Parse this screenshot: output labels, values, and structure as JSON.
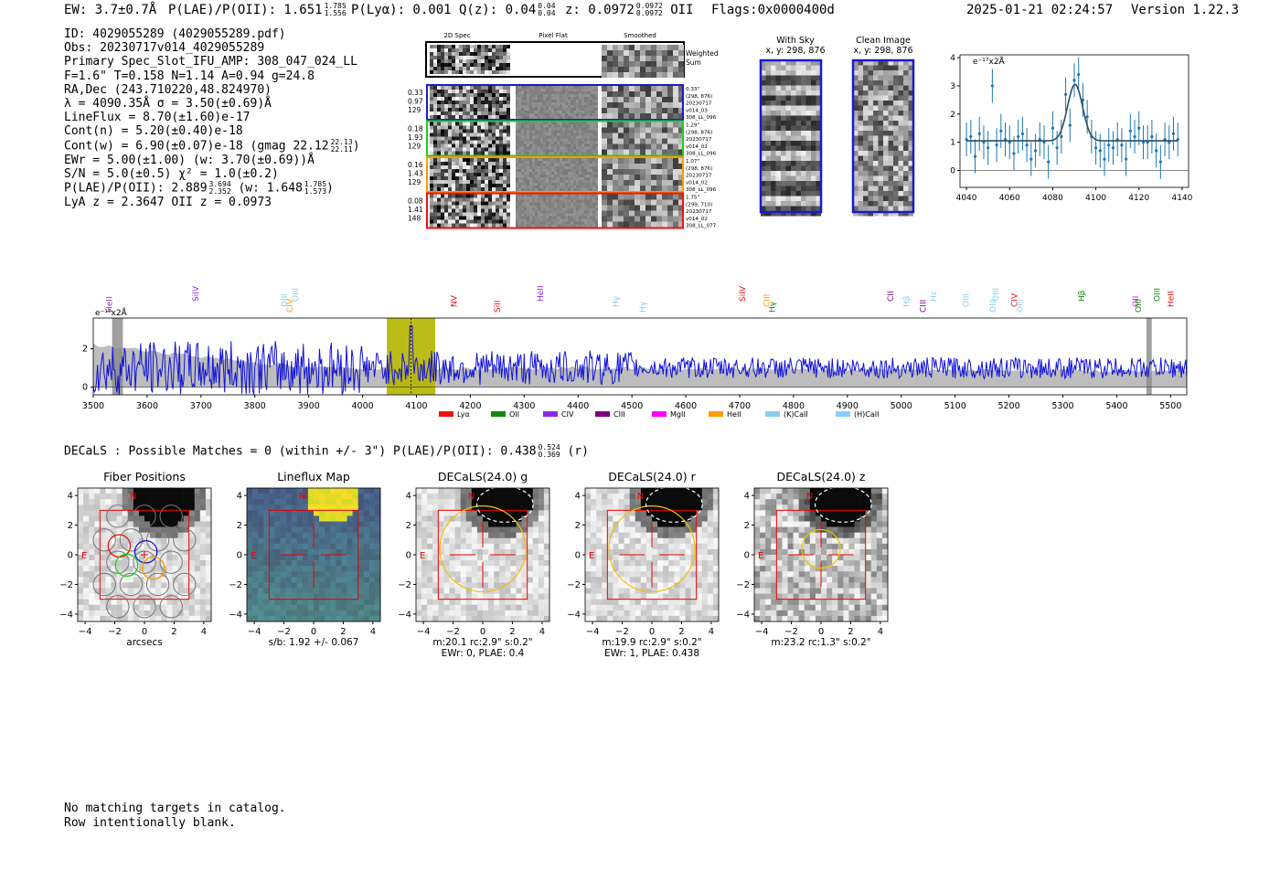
{
  "header": {
    "ew_label": "EW: 3.7±0.7Å",
    "plae_label": "P(LAE)/P(OII): 1.651",
    "plae_hi": "1.785",
    "plae_lo": "1.556",
    "plya_label": "P(Lyα): 0.001",
    "qz_label": "Q(z): 0.04",
    "qz_hi": "0.04",
    "qz_lo": "0.04",
    "z_label": "z: 0.0972",
    "z_hi": "0.0972",
    "z_lo": "0.0972",
    "z_line": "OII",
    "flags": "Flags:0x0000400d",
    "timestamp": "2025-01-21 02:24:57",
    "version": "Version 1.22.3"
  },
  "info": {
    "id": "ID: 4029055289 (4029055289.pdf)",
    "obs": "Obs: 20230717v014_4029055289",
    "primary": "Primary Spec_Slot_IFU_AMP: 308_047_024_LL",
    "fit_params": "F=1.6\"  T=0.158  N=1.14  A=0.94  g=24.8",
    "radec": "RA,Dec (243.710220,48.824970)",
    "lambda_sigma": "λ = 4090.35Å   σ = 3.50(±0.69)Å",
    "lineflux": "LineFlux = 8.70(±1.60)e-17",
    "cont_n": "Cont(n) = 5.20(±0.40)e-18",
    "cont_w": "Cont(w) = 6.90(±0.07)e-18 (gmag 22.12",
    "gmag_hi": "22.13",
    "gmag_lo": "22.11",
    "ewr": "EWr = 5.00(±1.00) (w: 3.70(±0.69))Å",
    "sn": "S/N = 5.0(±0.5)  χ² = 1.0(±0.2)",
    "plae": "P(LAE)/P(OII): 2.889",
    "plae_hi": "3.694",
    "plae_lo": "2.352",
    "plae_w": "(w: 1.648",
    "plae_w_hi": "1.785",
    "plae_w_lo": "1.573",
    "lya_oii": "LyA z = 2.3647   OII z = 0.0973"
  },
  "stamps": {
    "col_titles": [
      "2D Spec",
      "Pixel Flat",
      "Smoothed"
    ],
    "weighted_sum": "Weighted Sum",
    "rows": [
      {
        "left": [
          "0.33",
          "0.97",
          "129"
        ],
        "right": [
          "0.33\"",
          "(298, 876)",
          "20230717",
          "v014_03",
          "308_LL_096"
        ],
        "color": "#1a1acc"
      },
      {
        "left": [
          "0.18",
          "1.93",
          "129"
        ],
        "right": [
          "1.29\"",
          "(298, 876)",
          "20230717",
          "v014_01",
          "308_LL_096"
        ],
        "color": "#22cc22"
      },
      {
        "left": [
          "0.16",
          "1.43",
          "129"
        ],
        "right": [
          "1.07\"",
          "(298, 876)",
          "20230717",
          "v014_02",
          "308_LL_096"
        ],
        "color": "#ff9900"
      },
      {
        "left": [
          "0.08",
          "1.41",
          "148"
        ],
        "right": [
          "1.75\"",
          "(299, 710)",
          "20230717",
          "v014_02",
          "308_LL_077"
        ],
        "color": "#ee1111"
      }
    ]
  },
  "sky": {
    "with_sky_title": "With Sky",
    "with_sky_coords": "x, y: 298, 876",
    "clean_title": "Clean Image",
    "clean_coords": "x, y: 298, 876"
  },
  "fit_chart": {
    "ylabel": "e⁻¹⁷x2Å"
  },
  "main_chart": {
    "ylabel": "e⁻¹⁷x2Å",
    "legend": [
      {
        "name": "Lyα",
        "color": "#ee1111"
      },
      {
        "name": "OII",
        "color": "#118811"
      },
      {
        "name": "CIV",
        "color": "#8a2be2"
      },
      {
        "name": "CIII",
        "color": "#800080"
      },
      {
        "name": "MgII",
        "color": "#ff00ff"
      },
      {
        "name": "HeII",
        "color": "#ff9900"
      },
      {
        "name": "(K)CaII",
        "color": "#87ceeb"
      },
      {
        "name": "(H)CaII",
        "color": "#87cefa"
      }
    ],
    "lines": [
      {
        "name": "HeII",
        "x": 3530,
        "color": "#8a2be2"
      },
      {
        "name": "SiIV",
        "x": 3690,
        "color": "#8a2be2"
      },
      {
        "name": "OIII",
        "x": 3855,
        "color": "#87ceeb"
      },
      {
        "name": "CIV",
        "x": 3865,
        "color": "#ff9900"
      },
      {
        "name": "OIII",
        "x": 3875,
        "color": "#87ceeb"
      },
      {
        "name": "NV",
        "x": 4170,
        "color": "#ee1111"
      },
      {
        "name": "SiII",
        "x": 4250,
        "color": "#ee1111"
      },
      {
        "name": "HeII",
        "x": 4330,
        "color": "#8a2be2"
      },
      {
        "name": "Hγ",
        "x": 4470,
        "color": "#87ceeb"
      },
      {
        "name": "Hγ",
        "x": 4520,
        "color": "#87ceeb"
      },
      {
        "name": "SiIV",
        "x": 4705,
        "color": "#ee1111"
      },
      {
        "name": "CIII",
        "x": 4750,
        "color": "#ff9900"
      },
      {
        "name": "Hγ",
        "x": 4760,
        "color": "#118811"
      },
      {
        "name": "CII",
        "x": 4980,
        "color": "#800080"
      },
      {
        "name": "Hβ",
        "x": 5010,
        "color": "#87ceeb"
      },
      {
        "name": "CIII",
        "x": 5040,
        "color": "#800080"
      },
      {
        "name": "Hε",
        "x": 5060,
        "color": "#87ceeb"
      },
      {
        "name": "OIII",
        "x": 5120,
        "color": "#87ceeb"
      },
      {
        "name": "OIII",
        "x": 5170,
        "color": "#87ceeb"
      },
      {
        "name": "OIII",
        "x": 5175,
        "color": "#87ceeb"
      },
      {
        "name": "CIV",
        "x": 5210,
        "color": "#ee1111"
      },
      {
        "name": "OIII",
        "x": 5220,
        "color": "#87ceeb"
      },
      {
        "name": "Hβ",
        "x": 5335,
        "color": "#118811"
      },
      {
        "name": "OII",
        "x": 5435,
        "color": "#ff00ff"
      },
      {
        "name": "OIII",
        "x": 5440,
        "color": "#118811"
      },
      {
        "name": "OIII",
        "x": 5475,
        "color": "#118811"
      },
      {
        "name": "HeII",
        "x": 5500,
        "color": "#ee1111"
      }
    ]
  },
  "decals": {
    "summary": "DECaLS : Possible Matches = 0 (within +/- 3\")  P(LAE)/P(OII): 0.438",
    "summary_hi": "0.524",
    "summary_lo": "0.369",
    "summary_band": "(r)",
    "panels": [
      {
        "title": "Fiber Positions",
        "caption1": "arcsecs",
        "caption2": ""
      },
      {
        "title": "Lineflux Map",
        "caption1": "s/b: 1.92 +/- 0.067",
        "caption2": ""
      },
      {
        "title": "DECaLS(24.0) g",
        "caption1": "m:20.1 rc:2.9\"  s:0.2\"",
        "caption2": "EWr: 0, PLAE: 0.4"
      },
      {
        "title": "DECaLS(24.0) r",
        "caption1": "m:19.9 rc:2.9\"  s:0.2\"",
        "caption2": "EWr: 1, PLAE: 0.438"
      },
      {
        "title": "DECaLS(24.0) z",
        "caption1": "m:23.2 rc:1.3\"  s:0.2\"",
        "caption2": ""
      }
    ],
    "compass_n": "N",
    "compass_e": "E"
  },
  "footer": {
    "line1": "No matching targets in catalog.",
    "line2": "Row intentionally blank."
  },
  "chart_data": [
    {
      "type": "line",
      "title": "",
      "xlabel": "",
      "ylabel": "e⁻¹⁷x2Å",
      "xlim": [
        3500,
        5530
      ],
      "ylim": [
        -0.4,
        3.6
      ],
      "xticks": [
        3500,
        3600,
        3700,
        3800,
        3900,
        4000,
        4100,
        4200,
        4300,
        4400,
        4500,
        4600,
        4700,
        4800,
        4900,
        5000,
        5100,
        5200,
        5300,
        5400,
        5500
      ],
      "yticks": [
        0,
        2
      ],
      "highlight_band": [
        4045,
        4135
      ],
      "line_marker": 4090,
      "series": [
        {
          "kind": "spectrum",
          "x_start": 3500,
          "x_end": 5530,
          "x_step": 2,
          "approx_mean": 1.0,
          "approx_noise": 0.7
        },
        {
          "kind": "error_envelope",
          "approx_level": 1.0
        }
      ]
    },
    {
      "type": "scatter",
      "title": "",
      "xlabel": "",
      "ylabel": "e⁻¹⁷x2Å",
      "xlim": [
        4037,
        4143
      ],
      "ylim": [
        -0.6,
        4.1
      ],
      "xticks": [
        4040,
        4060,
        4080,
        4100,
        4120,
        4140
      ],
      "yticks": [
        0,
        1,
        2,
        3,
        4
      ],
      "x": [
        4040,
        4042,
        4044,
        4046,
        4048,
        4050,
        4052,
        4054,
        4056,
        4058,
        4060,
        4062,
        4064,
        4066,
        4068,
        4070,
        4072,
        4074,
        4076,
        4078,
        4080,
        4082,
        4084,
        4086,
        4088,
        4090,
        4092,
        4094,
        4096,
        4098,
        4100,
        4102,
        4104,
        4106,
        4108,
        4110,
        4112,
        4114,
        4116,
        4118,
        4120,
        4122,
        4124,
        4126,
        4128,
        4130,
        4132,
        4134,
        4136,
        4138
      ],
      "y": [
        1.1,
        1.2,
        0.5,
        1.3,
        1.0,
        0.8,
        3.0,
        0.9,
        1.4,
        1.1,
        1.0,
        0.6,
        1.2,
        1.3,
        0.9,
        0.4,
        0.7,
        1.1,
        1.0,
        0.3,
        1.5,
        0.8,
        1.2,
        2.7,
        1.6,
        3.2,
        3.4,
        2.5,
        1.9,
        1.2,
        0.8,
        0.7,
        0.4,
        0.9,
        0.8,
        1.1,
        0.9,
        0.4,
        1.4,
        1.2,
        1.5,
        1.0,
        1.0,
        1.2,
        0.7,
        0.3,
        1.1,
        1.0,
        1.3,
        1.1
      ],
      "yerr": 0.6,
      "fit": {
        "kind": "gaussian",
        "center": 4090.35,
        "sigma": 3.5,
        "amplitude": 2.0,
        "baseline": 1.05
      }
    }
  ]
}
